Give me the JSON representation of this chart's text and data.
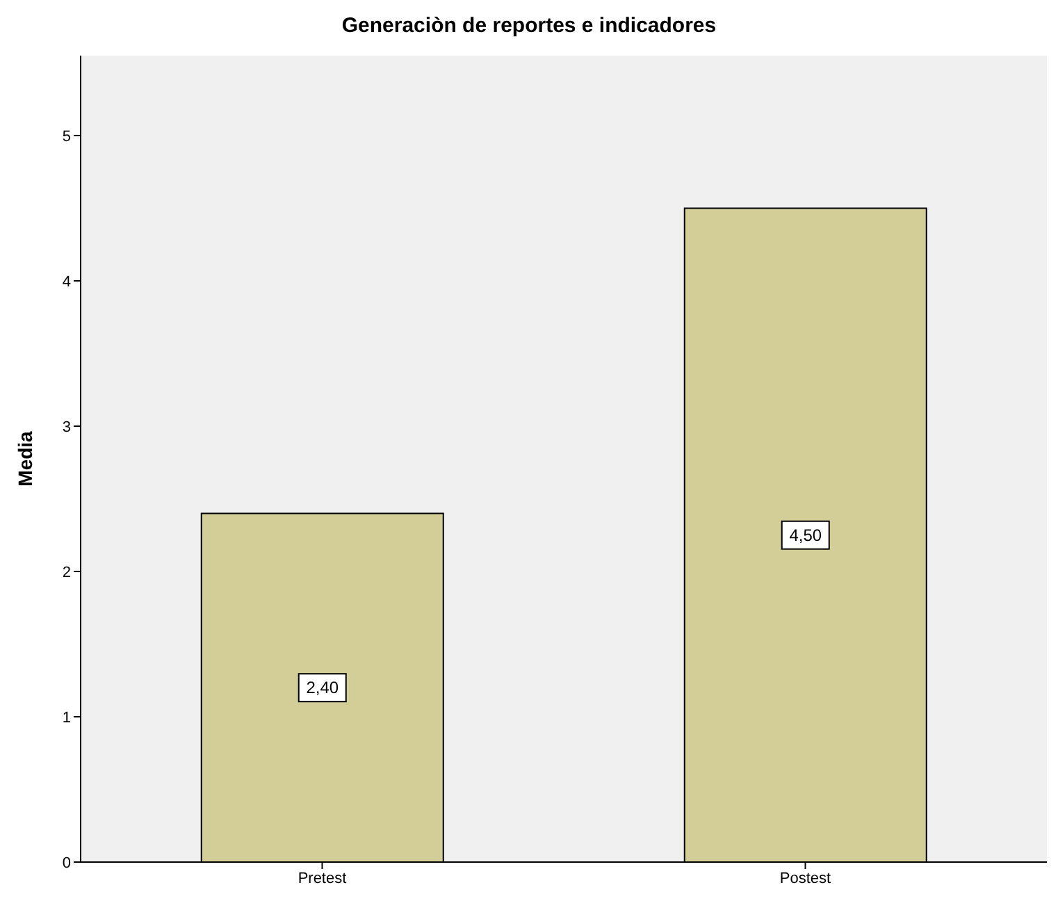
{
  "chart_data": {
    "type": "bar",
    "title": "Generaciòn de reportes e indicadores",
    "ylabel": "Media",
    "categories": [
      "Pretest",
      "Postest"
    ],
    "values": [
      2.4,
      4.5
    ],
    "value_labels": [
      "2,40",
      "4,50"
    ],
    "color": "#d3ce97",
    "ylim": [
      0,
      5.55
    ],
    "yticks": [
      0,
      1,
      2,
      3,
      4,
      5
    ],
    "grid": false
  }
}
